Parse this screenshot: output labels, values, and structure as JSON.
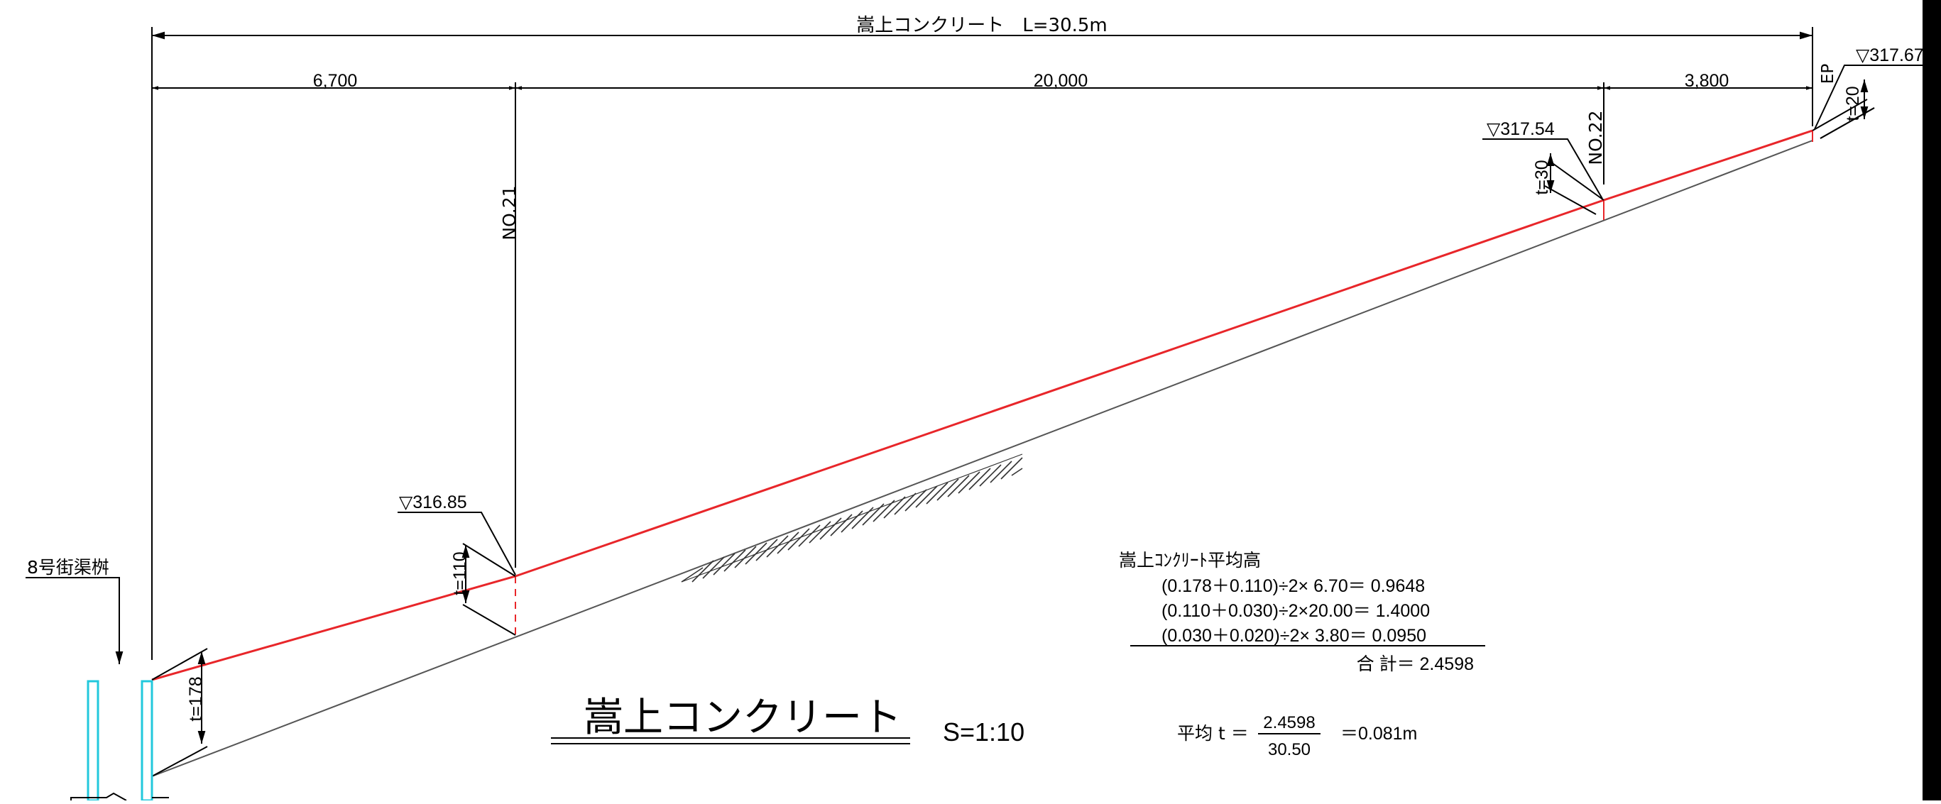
{
  "drawing": {
    "title": "嵩上コンクリート",
    "scale": "S=1:10",
    "total_length_label": "嵩上コンクリート　L=30.5m",
    "segment_dims": [
      "6,700",
      "20,000",
      "3,800"
    ],
    "stations": [
      "NO.21",
      "NO.22",
      "EP"
    ],
    "elevations": [
      "▽316.85",
      "▽317.54",
      "▽317.67"
    ],
    "thickness_labels": [
      "t=178",
      "t=110",
      "t=30",
      "t=20"
    ],
    "structure_label": "8号街渠桝"
  },
  "calc": {
    "heading": "嵩上ｺﾝｸﾘｰﾄ平均高",
    "rows": [
      "(0.178＋0.110)÷2×  6.70＝ 0.9648",
      "(0.110＋0.030)÷2×20.00＝ 1.4000",
      "(0.030＋0.020)÷2×  3.80＝ 0.0950"
    ],
    "total": "合 計＝ 2.4598",
    "avg_prefix": "平均 t ＝",
    "numerator": "2.4598",
    "denominator": "30.50",
    "avg_result": "＝0.081m"
  },
  "colors": {
    "concrete_top": "#e8262a",
    "ground_line": "#555555",
    "catch_basin": "#22c8dc",
    "dimension": "#000000"
  }
}
